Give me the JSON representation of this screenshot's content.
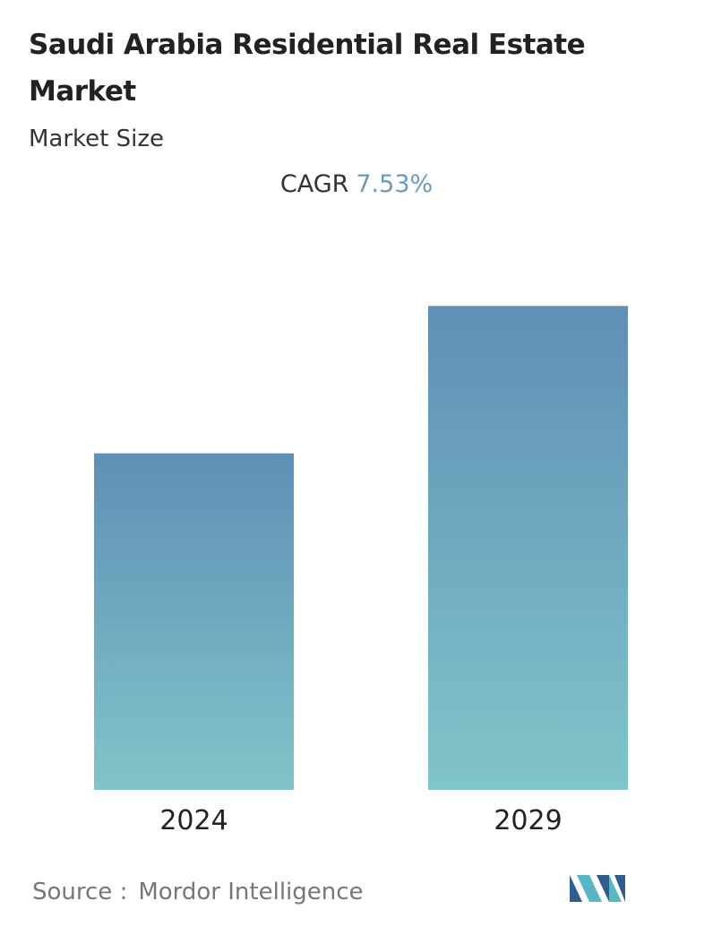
{
  "chart_data": {
    "type": "bar",
    "title": "Saudi Arabia Residential Real Estate Market",
    "subtitle": "Market Size",
    "cagr_label": "CAGR",
    "cagr_value": "7.53%",
    "categories": [
      "2024",
      "2029"
    ],
    "values": [
      100,
      143.8
    ],
    "ylim": [
      0,
      150
    ],
    "color_top": "#5f8fb6",
    "color_bottom": "#80c5c9",
    "source_label": "Source :",
    "source": "Mordor Intelligence"
  }
}
